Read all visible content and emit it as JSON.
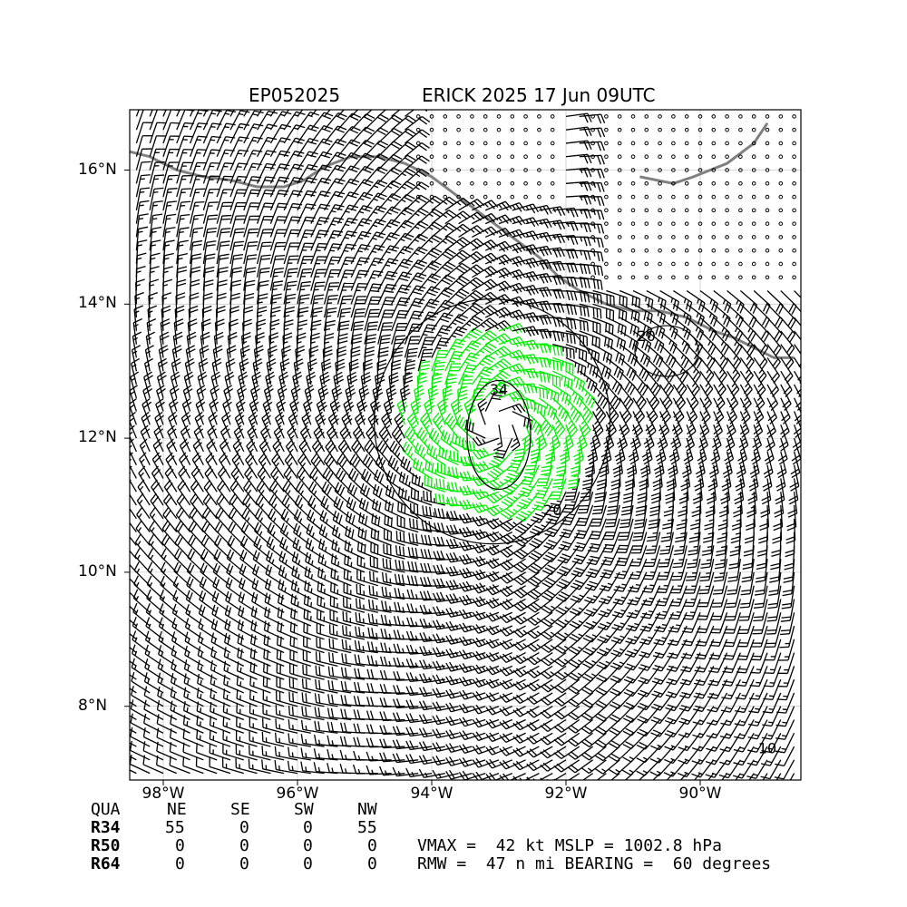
{
  "header": {
    "storm_id": "EP052025",
    "storm_title": "ERICK 2025 17 Jun 09UTC"
  },
  "map": {
    "lon_range": [
      -98.5,
      -88.5
    ],
    "lat_range": [
      6.9,
      16.9
    ],
    "lat_ticks": [
      {
        "value": 16,
        "label": "16°N"
      },
      {
        "value": 14,
        "label": "14°N"
      },
      {
        "value": 12,
        "label": "12°N"
      },
      {
        "value": 10,
        "label": "10°N"
      },
      {
        "value": 8,
        "label": "8°N"
      }
    ],
    "lon_ticks": [
      {
        "value": -98,
        "label": "98°W"
      },
      {
        "value": -96,
        "label": "96°W"
      },
      {
        "value": -94,
        "label": "94°W"
      },
      {
        "value": -92,
        "label": "92°W"
      },
      {
        "value": -90,
        "label": "90°W"
      }
    ],
    "grid": true,
    "contour_labels": [
      "20",
      "34",
      "20",
      "10"
    ],
    "colors": {
      "coast": "#808080",
      "barb_weak": "#000000",
      "barb_34kt": "#00ee00",
      "barb_50kt": "#ffa500",
      "contour": "#000000",
      "grid": "#cccccc"
    },
    "storm_center": {
      "lon": -93.0,
      "lat": 12.2
    }
  },
  "wind_radii_table": {
    "header": [
      "QUA",
      "NE",
      "SE",
      "SW",
      "NW"
    ],
    "rows": [
      {
        "label": "R34",
        "values": [
          "55",
          "0",
          "0",
          "55"
        ]
      },
      {
        "label": "R50",
        "values": [
          "0",
          "0",
          "0",
          "0"
        ]
      },
      {
        "label": "R64",
        "values": [
          "0",
          "0",
          "0",
          "0"
        ]
      }
    ]
  },
  "stats": {
    "line1": "VMAX =  42 kt MSLP = 1002.8 hPa",
    "line2": "RMW =  47 n mi BEARING =  60 degrees"
  }
}
